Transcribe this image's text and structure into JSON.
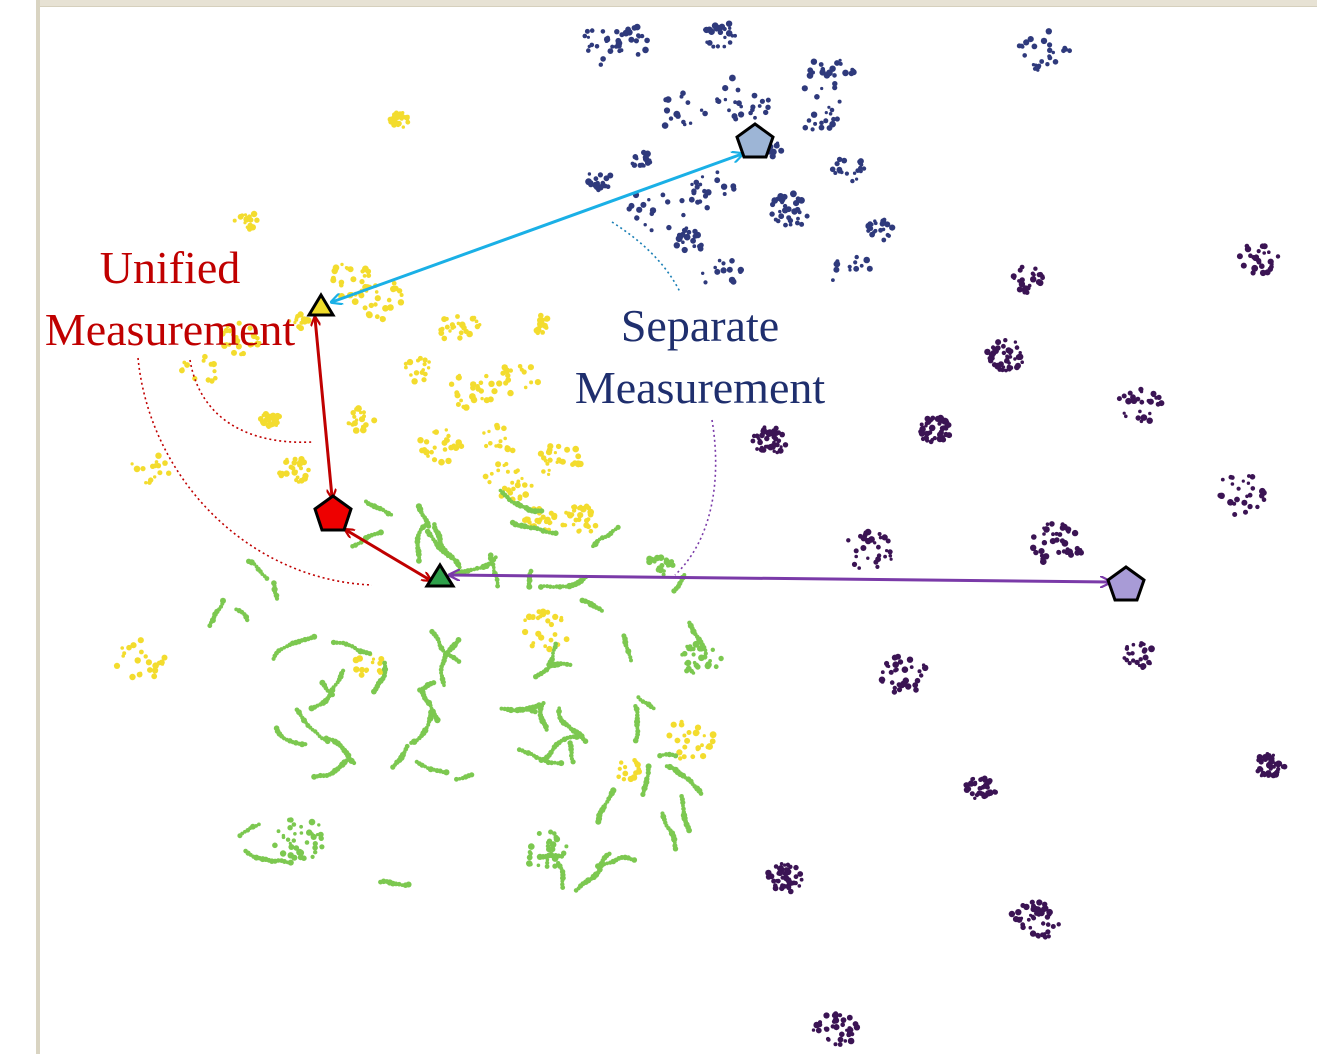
{
  "labels": {
    "unified_line1": "Unified",
    "unified_line2": "Measurement",
    "separate_line1": "Separate",
    "separate_line2": "Measurement"
  },
  "colors": {
    "yellow_cluster": "#f3dc2e",
    "green_cluster": "#7cc850",
    "navy_cluster": "#2f3a7c",
    "purple_cluster": "#3b1454",
    "unified_text": "#c00000",
    "separate_text": "#1f2f6e",
    "red_arrow": "#c00000",
    "cyan_arrow": "#1ab0e6",
    "purple_arrow": "#7a3aa8",
    "red_pentagon": "#ee0000",
    "blue_pentagon": "#9db5d6",
    "lavender_pentagon": "#a89bd6",
    "yellow_triangle": "#f0dc2a",
    "green_triangle": "#2ea04a",
    "frame": "#e7e2d4"
  },
  "markers": [
    {
      "name": "pentagon-marker-blue",
      "shape": "pentagon"
    },
    {
      "name": "pentagon-marker-red",
      "shape": "pentagon"
    },
    {
      "name": "pentagon-marker-lavender",
      "shape": "pentagon"
    },
    {
      "name": "triangle-marker-yellow",
      "shape": "triangle"
    },
    {
      "name": "triangle-marker-green",
      "shape": "triangle"
    }
  ]
}
